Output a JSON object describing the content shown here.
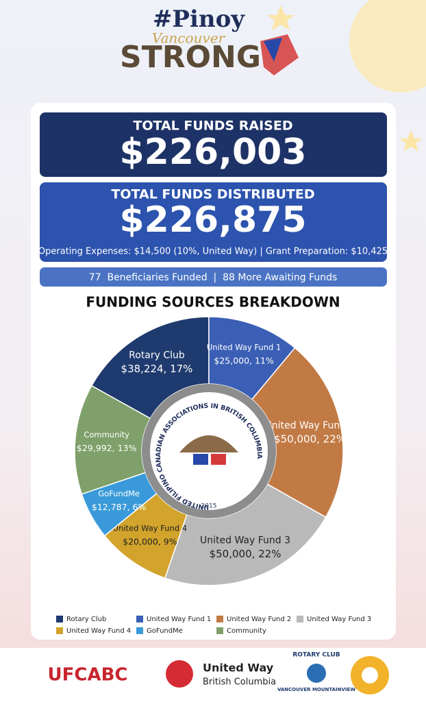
{
  "header": {
    "hashtag": "#Pinoy",
    "city": "Vancouver",
    "brand": "STRONG"
  },
  "totals": {
    "raised_label": "TOTAL FUNDS RAISED",
    "raised": "$226,003",
    "distributed_label": "TOTAL FUNDS DISTRIBUTED",
    "distributed": "$226,875",
    "note": "Operating Expenses: $14,500 (10%, United Way) | Grant Preparation: $10,425",
    "beneficiaries": "77  Beneficiaries Funded  |  88 More Awaiting Funds"
  },
  "chart_data": {
    "type": "donut",
    "title": "FUNDING SOURCES BREAKDOWN",
    "categories": [
      "Rotary Club",
      "United Way Fund 1",
      "United Way Fund 2",
      "United Way Fund 3",
      "United Way Fund 4",
      "GoFundMe",
      "Community"
    ],
    "values": [
      38224,
      25000,
      50000,
      50000,
      20000,
      12787,
      29992
    ],
    "value_labels": [
      "$38,224, 17%",
      "$25,000, 11%",
      "$50,000, 22%",
      "$50,000, 22%",
      "$20,000, 9%",
      "$12,787, 6%",
      "$29,992, 13%"
    ],
    "colors": [
      "#1f3a6e",
      "#3b5fb5",
      "#c27a45",
      "#b9b9b9",
      "#d3a42c",
      "#3a9ad9",
      "#7fa06a"
    ]
  },
  "center_logo": {
    "ring_text": "UNITED FILIPINO CANADIAN ASSOCIATIONS IN BRITISH COLUMBIA",
    "year": "2015"
  },
  "footer": {
    "org": "UFCABC",
    "united_way": "United Way",
    "united_way_region": "British Columbia",
    "rotary": "ROTARY CLUB",
    "rotary_club": "VANCOUVER MOUNTAINVIEW"
  }
}
